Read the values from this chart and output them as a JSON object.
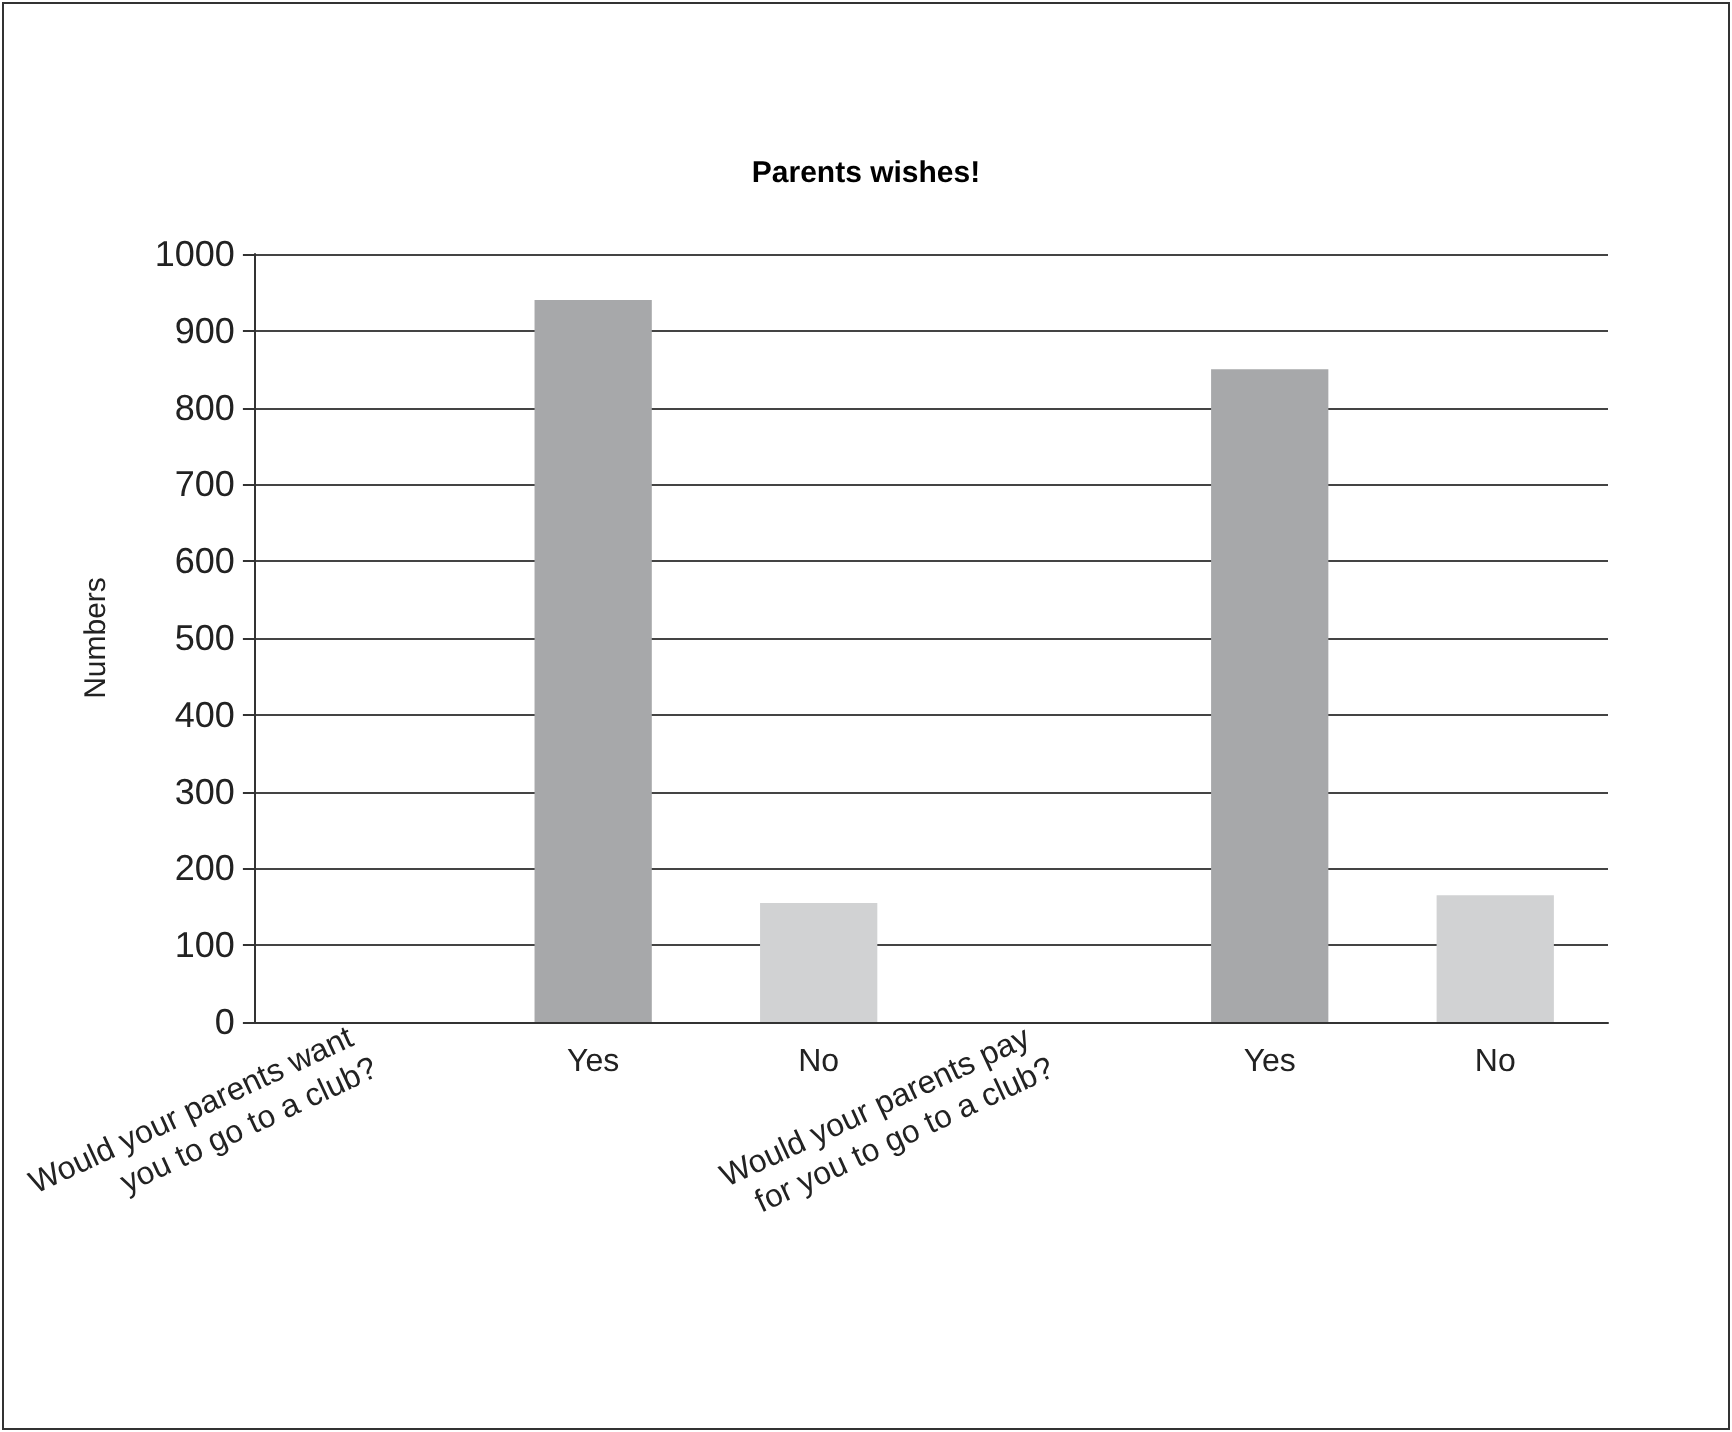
{
  "chart_data": {
    "type": "bar",
    "title": "Parents wishes!",
    "ylabel": "Numbers",
    "categories": [
      "Would your parents want you to go to a club?",
      "Yes",
      "No",
      "Would your parents pay for you to go to a club?",
      "Yes",
      "No"
    ],
    "values": [
      null,
      940,
      155,
      null,
      850,
      165
    ],
    "colors": [
      "#a7a8aa",
      "#a7a8aa",
      "#d1d2d3",
      "#a7a8aa",
      "#a7a8aa",
      "#d1d2d3"
    ],
    "ylim": [
      0,
      1000
    ],
    "yticks": [
      0,
      100,
      200,
      300,
      400,
      500,
      600,
      700,
      800,
      900,
      1000
    ],
    "grid": "y"
  }
}
